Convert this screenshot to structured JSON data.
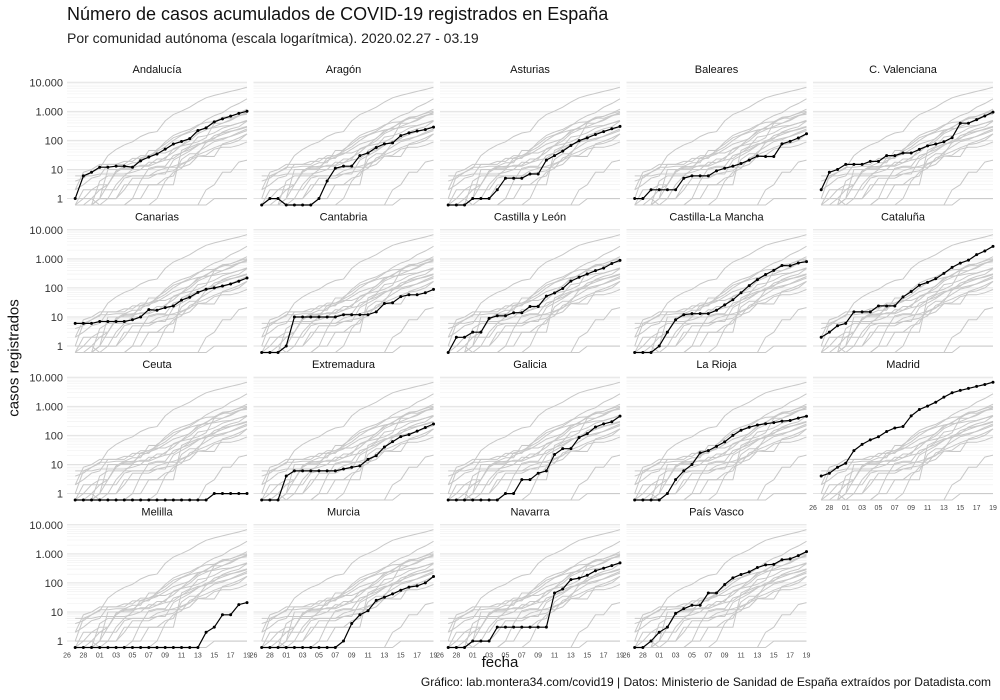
{
  "title": "Número de casos acumulados de COVID-19 registrados en España",
  "subtitle": "Por comunidad autónoma (escala logarítmica). 2020.02.27 - 03.19",
  "caption": "Gráfico: lab.montera34.com/covid19 | Datos: Ministerio de Sanidad de España extraídos por Datadista.com",
  "colors": {
    "highlight": "#000000",
    "background_lines": "#c8c8c8",
    "grid": "#e6e6e6"
  },
  "chart_data": {
    "type": "line",
    "scale_y": "log",
    "facet_columns": 5,
    "xlabel": "fecha",
    "ylabel": "casos registrados",
    "x": [
      "27",
      "28",
      "29",
      "01",
      "02",
      "03",
      "04",
      "05",
      "06",
      "07",
      "08",
      "09",
      "10",
      "11",
      "12",
      "13",
      "14",
      "15",
      "16",
      "17",
      "18",
      "19"
    ],
    "x_tick_labels": [
      "26",
      "28",
      "01",
      "03",
      "05",
      "07",
      "09",
      "11",
      "13",
      "15",
      "17",
      "19"
    ],
    "y_tick_labels": [
      "1",
      "10",
      "100",
      "1.000",
      "10.000"
    ],
    "y_ticks": [
      1,
      10,
      100,
      1000,
      10000
    ],
    "ylim": [
      0.6,
      12000
    ],
    "grid": true,
    "series": [
      {
        "name": "Andalucía",
        "values": [
          1,
          6,
          8,
          12,
          12,
          13,
          13,
          12,
          20,
          27,
          34,
          50,
          75,
          92,
          115,
          219,
          269,
          437,
          554,
          683,
          851,
          1010
        ]
      },
      {
        "name": "Aragón",
        "values": [
          0,
          1,
          1,
          0,
          0,
          0,
          0,
          1,
          4,
          11,
          13,
          13,
          30,
          37,
          57,
          76,
          82,
          147,
          182,
          210,
          236,
          288
        ]
      },
      {
        "name": "Asturias",
        "values": [
          0,
          0,
          0,
          1,
          1,
          1,
          2,
          5,
          5,
          5,
          7,
          7,
          21,
          30,
          43,
          67,
          98,
          123,
          160,
          201,
          251,
          303
        ]
      },
      {
        "name": "Baleares",
        "values": [
          1,
          1,
          2,
          2,
          2,
          2,
          5,
          6,
          6,
          6,
          9,
          11,
          13,
          16,
          21,
          29,
          28,
          28,
          76,
          93,
          121,
          169
        ]
      },
      {
        "name": "C. Valenciana",
        "values": [
          2,
          8,
          10,
          15,
          15,
          15,
          19,
          19,
          30,
          30,
          37,
          37,
          49,
          65,
          75,
          90,
          124,
          391,
          391,
          520,
          696,
          940
        ]
      },
      {
        "name": "Canarias",
        "values": [
          6,
          6,
          6,
          7,
          7,
          7,
          7,
          8,
          10,
          18,
          17,
          21,
          24,
          38,
          48,
          70,
          90,
          100,
          117,
          136,
          170,
          220
        ]
      },
      {
        "name": "Cantabria",
        "values": [
          0,
          0,
          0,
          1,
          10,
          10,
          10,
          10,
          10,
          10,
          12,
          12,
          12,
          12,
          15,
          29,
          31,
          50,
          58,
          58,
          68,
          89
        ]
      },
      {
        "name": "Castilla y León",
        "values": [
          0,
          2,
          2,
          3,
          3,
          9,
          11,
          11,
          14,
          14,
          23,
          23,
          52,
          67,
          96,
          172,
          232,
          302,
          392,
          480,
          690,
          890
        ]
      },
      {
        "name": "Castilla-La Mancha",
        "values": [
          0,
          0,
          0,
          1,
          3,
          8,
          12,
          13,
          13,
          13,
          17,
          26,
          39,
          68,
          120,
          194,
          289,
          401,
          590,
          578,
          724,
          800
        ]
      },
      {
        "name": "Cataluña",
        "values": [
          2,
          3,
          5,
          6,
          15,
          15,
          15,
          24,
          24,
          24,
          49,
          75,
          124,
          156,
          208,
          316,
          509,
          715,
          903,
          1394,
          1866,
          2702
        ]
      },
      {
        "name": "Ceuta",
        "values": [
          0,
          0,
          0,
          0,
          0,
          0,
          0,
          0,
          0,
          0,
          0,
          0,
          0,
          0,
          0,
          0,
          0,
          1,
          1,
          1,
          1,
          1
        ]
      },
      {
        "name": "Extremadura",
        "values": [
          0,
          0,
          0,
          4,
          6,
          6,
          6,
          6,
          6,
          6,
          7,
          8,
          9,
          15,
          20,
          40,
          61,
          91,
          107,
          140,
          188,
          248
        ]
      },
      {
        "name": "Galicia",
        "values": [
          0,
          0,
          0,
          0,
          0,
          0,
          0,
          1,
          1,
          3,
          3,
          5,
          6,
          22,
          35,
          35,
          85,
          115,
          195,
          250,
          295,
          462
        ]
      },
      {
        "name": "La Rioja",
        "values": [
          0,
          0,
          0,
          0,
          1,
          3,
          6,
          10,
          25,
          30,
          42,
          60,
          100,
          150,
          191,
          228,
          253,
          275,
          311,
          326,
          394,
          459
        ]
      },
      {
        "name": "Madrid",
        "values": [
          4,
          5,
          8,
          11,
          30,
          49,
          70,
          90,
          137,
          180,
          202,
          469,
          782,
          1024,
          1388,
          2078,
          2940,
          3544,
          4165,
          4871,
          5637,
          6777
        ]
      },
      {
        "name": "Melilla",
        "values": [
          0,
          0,
          0,
          0,
          0,
          0,
          0,
          0,
          0,
          0,
          0,
          0,
          0,
          0,
          0,
          0,
          2,
          3,
          8,
          8,
          18,
          21
        ]
      },
      {
        "name": "Murcia",
        "values": [
          0,
          0,
          0,
          0,
          0,
          0,
          0,
          0,
          0,
          0,
          1,
          4,
          8,
          11,
          25,
          32,
          42,
          56,
          72,
          79,
          100,
          167
        ]
      },
      {
        "name": "Navarra",
        "values": [
          0,
          0,
          0,
          1,
          1,
          1,
          3,
          3,
          3,
          3,
          3,
          3,
          3,
          45,
          62,
          130,
          146,
          183,
          263,
          319,
          394,
          492
        ]
      },
      {
        "name": "País Vasco",
        "values": [
          0,
          0,
          1,
          2,
          3,
          9,
          13,
          17,
          17,
          45,
          45,
          88,
          149,
          195,
          240,
          340,
          417,
          437,
          630,
          673,
          874,
          1190
        ]
      }
    ]
  }
}
